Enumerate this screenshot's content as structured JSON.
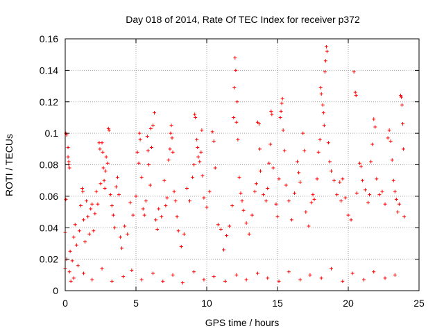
{
  "chart_data": {
    "type": "scatter",
    "title": "Day 018 of 2014, Rate Of TEC Index for receiver p372",
    "xlabel": "GPS time / hours",
    "ylabel": "ROTI / TECUs",
    "xlim": [
      0,
      25
    ],
    "ylim": [
      0,
      0.16
    ],
    "xticks": [
      0,
      5,
      10,
      15,
      20,
      25
    ],
    "yticks": [
      0,
      0.02,
      0.04,
      0.06,
      0.08,
      0.1,
      0.12,
      0.14,
      0.16
    ],
    "xtick_labels": [
      "0",
      "5",
      "10",
      "15",
      "20",
      "25"
    ],
    "ytick_labels": [
      "0",
      "0.02",
      "0.04",
      "0.06",
      "0.08",
      "0.1",
      "0.12",
      "0.14",
      "0.16"
    ],
    "grid": true,
    "marker": "+",
    "marker_color": "#ff0000",
    "series": [
      {
        "name": "ROTI",
        "points": [
          [
            0.0,
            0.014
          ],
          [
            0.0,
            0.037
          ],
          [
            0.05,
            0.1
          ],
          [
            0.05,
            0.058
          ],
          [
            0.1,
            0.099
          ],
          [
            0.1,
            0.02
          ],
          [
            0.2,
            0.091
          ],
          [
            0.2,
            0.085
          ],
          [
            0.25,
            0.082
          ],
          [
            0.25,
            0.08
          ],
          [
            0.3,
            0.078
          ],
          [
            0.3,
            0.012
          ],
          [
            0.35,
            0.025
          ],
          [
            0.4,
            0.006
          ],
          [
            0.5,
            0.019
          ],
          [
            0.6,
            0.034
          ],
          [
            0.7,
            0.042
          ],
          [
            0.8,
            0.029
          ],
          [
            0.9,
            0.016
          ],
          [
            1.0,
            0.038
          ],
          [
            1.1,
            0.054
          ],
          [
            1.2,
            0.065
          ],
          [
            1.25,
            0.063
          ],
          [
            1.3,
            0.045
          ],
          [
            1.4,
            0.031
          ],
          [
            1.5,
            0.057
          ],
          [
            1.6,
            0.047
          ],
          [
            1.7,
            0.036
          ],
          [
            1.8,
            0.052
          ],
          [
            1.9,
            0.055
          ],
          [
            2.0,
            0.038
          ],
          [
            2.1,
            0.049
          ],
          [
            2.2,
            0.063
          ],
          [
            2.3,
            0.055
          ],
          [
            2.4,
            0.094
          ],
          [
            2.45,
            0.09
          ],
          [
            2.5,
            0.068
          ],
          [
            2.6,
            0.094
          ],
          [
            2.65,
            0.088
          ],
          [
            2.7,
            0.078
          ],
          [
            2.75,
            0.07
          ],
          [
            2.8,
            0.065
          ],
          [
            2.85,
            0.076
          ],
          [
            2.9,
            0.085
          ],
          [
            3.0,
            0.081
          ],
          [
            3.05,
            0.103
          ],
          [
            3.1,
            0.102
          ],
          [
            3.2,
            0.061
          ],
          [
            3.3,
            0.054
          ],
          [
            3.4,
            0.048
          ],
          [
            3.5,
            0.04
          ],
          [
            3.6,
            0.066
          ],
          [
            3.7,
            0.072
          ],
          [
            3.8,
            0.061
          ],
          [
            3.9,
            0.034
          ],
          [
            4.0,
            0.027
          ],
          [
            4.2,
            0.041
          ],
          [
            4.4,
            0.036
          ],
          [
            4.6,
            0.056
          ],
          [
            4.8,
            0.048
          ],
          [
            5.0,
            0.06
          ],
          [
            5.1,
            0.088
          ],
          [
            5.2,
            0.081
          ],
          [
            5.25,
            0.1
          ],
          [
            5.3,
            0.096
          ],
          [
            5.4,
            0.072
          ],
          [
            5.5,
            0.052
          ],
          [
            5.6,
            0.048
          ],
          [
            5.7,
            0.057
          ],
          [
            5.8,
            0.098
          ],
          [
            5.85,
            0.089
          ],
          [
            5.9,
            0.08
          ],
          [
            6.0,
            0.067
          ],
          [
            6.05,
            0.103
          ],
          [
            6.1,
            0.091
          ],
          [
            6.2,
            0.105
          ],
          [
            6.3,
            0.113
          ],
          [
            6.4,
            0.045
          ],
          [
            6.5,
            0.039
          ],
          [
            6.6,
            0.052
          ],
          [
            6.8,
            0.047
          ],
          [
            7.0,
            0.07
          ],
          [
            7.1,
            0.054
          ],
          [
            7.2,
            0.059
          ],
          [
            7.3,
            0.083
          ],
          [
            7.4,
            0.09
          ],
          [
            7.45,
            0.1
          ],
          [
            7.5,
            0.105
          ],
          [
            7.55,
            0.097
          ],
          [
            7.6,
            0.088
          ],
          [
            7.7,
            0.063
          ],
          [
            7.8,
            0.057
          ],
          [
            7.9,
            0.047
          ],
          [
            8.0,
            0.038
          ],
          [
            8.2,
            0.028
          ],
          [
            8.4,
            0.036
          ],
          [
            8.6,
            0.065
          ],
          [
            8.8,
            0.057
          ],
          [
            9.0,
            0.072
          ],
          [
            9.1,
            0.08
          ],
          [
            9.15,
            0.112
          ],
          [
            9.2,
            0.11
          ],
          [
            9.3,
            0.096
          ],
          [
            9.35,
            0.091
          ],
          [
            9.4,
            0.085
          ],
          [
            9.5,
            0.082
          ],
          [
            9.6,
            0.088
          ],
          [
            9.65,
            0.102
          ],
          [
            9.7,
            0.073
          ],
          [
            9.8,
            0.059
          ],
          [
            10.0,
            0.053
          ],
          [
            10.2,
            0.063
          ],
          [
            10.4,
            0.101
          ],
          [
            10.5,
            0.095
          ],
          [
            10.6,
            0.078
          ],
          [
            10.8,
            0.042
          ],
          [
            11.0,
            0.039
          ],
          [
            11.2,
            0.026
          ],
          [
            11.4,
            0.035
          ],
          [
            11.6,
            0.041
          ],
          [
            11.8,
            0.054
          ],
          [
            11.9,
            0.11
          ],
          [
            11.95,
            0.129
          ],
          [
            12.0,
            0.148
          ],
          [
            12.05,
            0.14
          ],
          [
            12.1,
            0.107
          ],
          [
            12.15,
            0.12
          ],
          [
            12.2,
            0.096
          ],
          [
            12.3,
            0.072
          ],
          [
            12.4,
            0.062
          ],
          [
            12.5,
            0.057
          ],
          [
            12.6,
            0.051
          ],
          [
            12.8,
            0.043
          ],
          [
            13.0,
            0.036
          ],
          [
            13.2,
            0.048
          ],
          [
            13.4,
            0.063
          ],
          [
            13.5,
            0.068
          ],
          [
            13.6,
            0.107
          ],
          [
            13.7,
            0.106
          ],
          [
            13.75,
            0.09
          ],
          [
            13.8,
            0.076
          ],
          [
            14.0,
            0.061
          ],
          [
            14.2,
            0.057
          ],
          [
            14.3,
            0.065
          ],
          [
            14.4,
            0.081
          ],
          [
            14.5,
            0.093
          ],
          [
            14.55,
            0.114
          ],
          [
            14.6,
            0.112
          ],
          [
            14.7,
            0.078
          ],
          [
            14.9,
            0.055
          ],
          [
            15.0,
            0.047
          ],
          [
            15.1,
            0.071
          ],
          [
            15.2,
            0.11
          ],
          [
            15.25,
            0.114
          ],
          [
            15.3,
            0.119
          ],
          [
            15.35,
            0.122
          ],
          [
            15.4,
            0.102
          ],
          [
            15.5,
            0.089
          ],
          [
            15.6,
            0.067
          ],
          [
            15.8,
            0.057
          ],
          [
            16.0,
            0.045
          ],
          [
            16.2,
            0.062
          ],
          [
            16.4,
            0.082
          ],
          [
            16.5,
            0.075
          ],
          [
            16.6,
            0.069
          ],
          [
            16.8,
            0.1
          ],
          [
            16.9,
            0.089
          ],
          [
            17.0,
            0.05
          ],
          [
            17.2,
            0.041
          ],
          [
            17.4,
            0.056
          ],
          [
            17.5,
            0.061
          ],
          [
            17.6,
            0.058
          ],
          [
            17.8,
            0.071
          ],
          [
            17.9,
            0.088
          ],
          [
            18.0,
            0.096
          ],
          [
            18.05,
            0.129
          ],
          [
            18.1,
            0.125
          ],
          [
            18.2,
            0.118
          ],
          [
            18.25,
            0.113
          ],
          [
            18.3,
            0.105
          ],
          [
            18.35,
            0.139
          ],
          [
            18.4,
            0.146
          ],
          [
            18.45,
            0.155
          ],
          [
            18.5,
            0.152
          ],
          [
            18.6,
            0.094
          ],
          [
            18.7,
            0.082
          ],
          [
            18.8,
            0.076
          ],
          [
            19.0,
            0.07
          ],
          [
            19.2,
            0.061
          ],
          [
            19.4,
            0.069
          ],
          [
            19.5,
            0.057
          ],
          [
            19.6,
            0.071
          ],
          [
            19.8,
            0.059
          ],
          [
            20.0,
            0.048
          ],
          [
            20.2,
            0.045
          ],
          [
            20.4,
            0.139
          ],
          [
            20.5,
            0.126
          ],
          [
            20.55,
            0.124
          ],
          [
            20.6,
            0.062
          ],
          [
            20.8,
            0.081
          ],
          [
            20.9,
            0.079
          ],
          [
            21.0,
            0.07
          ],
          [
            21.2,
            0.064
          ],
          [
            21.4,
            0.056
          ],
          [
            21.5,
            0.061
          ],
          [
            21.6,
            0.082
          ],
          [
            21.7,
            0.093
          ],
          [
            21.8,
            0.109
          ],
          [
            21.9,
            0.104
          ],
          [
            22.0,
            0.071
          ],
          [
            22.2,
            0.061
          ],
          [
            22.4,
            0.063
          ],
          [
            22.6,
            0.055
          ],
          [
            22.8,
            0.097
          ],
          [
            22.9,
            0.102
          ],
          [
            23.0,
            0.095
          ],
          [
            23.1,
            0.083
          ],
          [
            23.2,
            0.07
          ],
          [
            23.3,
            0.063
          ],
          [
            23.4,
            0.058
          ],
          [
            23.5,
            0.05
          ],
          [
            23.6,
            0.055
          ],
          [
            23.7,
            0.124
          ],
          [
            23.75,
            0.123
          ],
          [
            23.8,
            0.118
          ],
          [
            23.85,
            0.106
          ],
          [
            23.9,
            0.09
          ],
          [
            23.95,
            0.047
          ],
          [
            0.6,
            0.008
          ],
          [
            1.3,
            0.011
          ],
          [
            1.9,
            0.007
          ],
          [
            2.6,
            0.014
          ],
          [
            3.3,
            0.006
          ],
          [
            4.1,
            0.009
          ],
          [
            4.7,
            0.013
          ],
          [
            5.4,
            0.007
          ],
          [
            6.2,
            0.011
          ],
          [
            6.9,
            0.006
          ],
          [
            7.6,
            0.01
          ],
          [
            8.3,
            0.005
          ],
          [
            9.1,
            0.012
          ],
          [
            9.8,
            0.007
          ],
          [
            10.5,
            0.009
          ],
          [
            11.3,
            0.006
          ],
          [
            12.1,
            0.01
          ],
          [
            12.8,
            0.007
          ],
          [
            13.6,
            0.011
          ],
          [
            14.3,
            0.008
          ],
          [
            15.1,
            0.006
          ],
          [
            15.8,
            0.012
          ],
          [
            16.6,
            0.007
          ],
          [
            17.3,
            0.01
          ],
          [
            18.1,
            0.008
          ],
          [
            18.8,
            0.014
          ],
          [
            19.6,
            0.006
          ],
          [
            20.3,
            0.011
          ],
          [
            21.1,
            0.007
          ],
          [
            21.8,
            0.012
          ],
          [
            22.6,
            0.008
          ],
          [
            23.3,
            0.01
          ]
        ]
      }
    ]
  }
}
